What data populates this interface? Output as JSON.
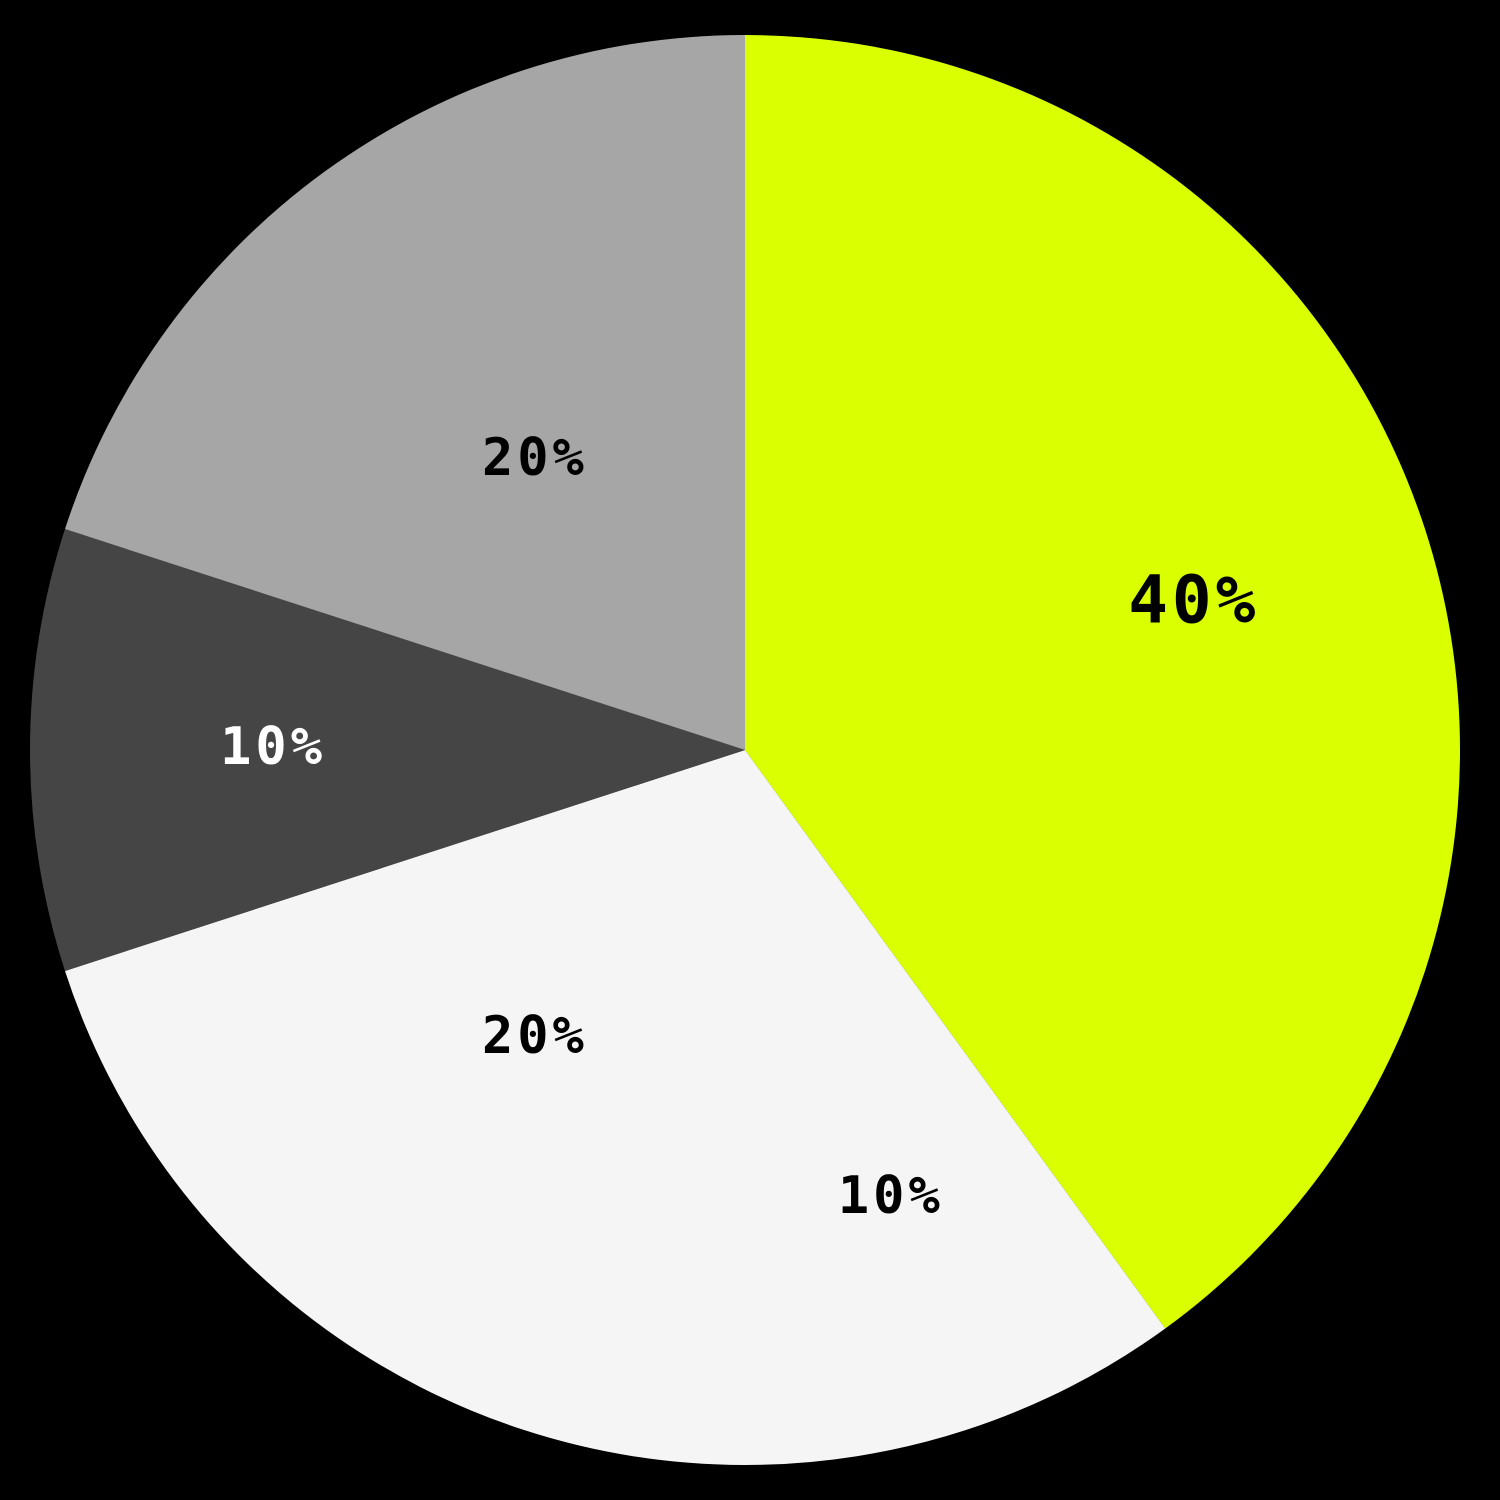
{
  "chart_data": {
    "type": "pie",
    "start_angle_deg": 0,
    "direction": "clockwise",
    "slices": [
      {
        "label": "40%",
        "value": 40,
        "color": "#d9ff00",
        "label_color": "#000000"
      },
      {
        "label": "10%",
        "value": 10,
        "color": "#f5f5f5",
        "label_color": "#000000"
      },
      {
        "label": "20%",
        "value": 20,
        "color": "#f5f5f5",
        "label_color": "#000000"
      },
      {
        "label": "10%",
        "value": 10,
        "color": "#454545",
        "label_color": "#ffffff"
      },
      {
        "label": "20%",
        "value": 20,
        "color": "#a6a6a6",
        "label_color": "#000000"
      }
    ]
  },
  "colors": {
    "background": "#000000"
  }
}
